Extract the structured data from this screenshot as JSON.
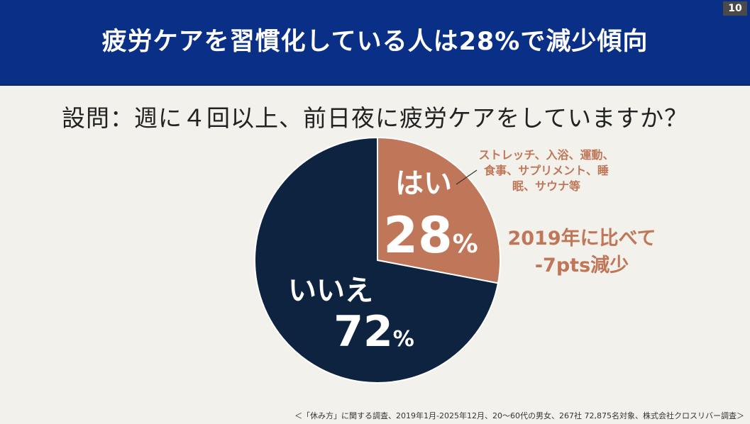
{
  "page_number": "10",
  "title": "疲労ケアを習慣化している人は28%で減少傾向",
  "question": "設問：週に４回以上、前日夜に疲労ケアをしていますか？",
  "colors": {
    "header": "#0a2f86",
    "yes": "#c07658",
    "no": "#0d2340",
    "annotation": "#c07658"
  },
  "chart_data": {
    "type": "pie",
    "slices": [
      {
        "label": "はい",
        "value": 28,
        "value_label": "28",
        "unit": "%",
        "color": "#c07658"
      },
      {
        "label": "いいえ",
        "value": 72,
        "value_label": "72",
        "unit": "%",
        "color": "#0d2340"
      }
    ],
    "start": "12 o'clock",
    "direction": "clockwise"
  },
  "annotations": {
    "care_examples": [
      "ストレッチ、入浴、運動、",
      "食事、サプリメント、睡",
      "眠、サウナ等"
    ],
    "comparison": [
      "2019年に比べて",
      "-7pts減少"
    ]
  },
  "footnote": "＜「休み方」に関する調査、2019年1月-2025年12月、20～60代の男女、267社 72,875名対象、株式会社クロスリバー調査＞"
}
